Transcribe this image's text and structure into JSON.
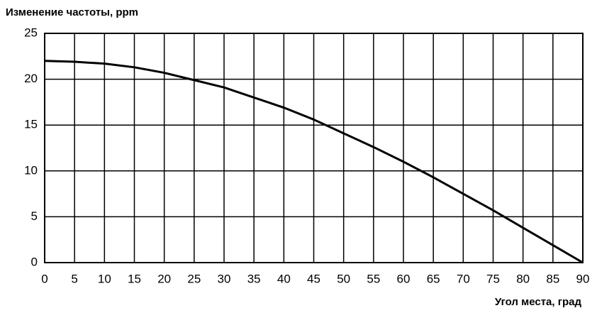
{
  "chart_data": {
    "type": "line",
    "title": "Изменение частоты, ppm",
    "x_label": "Угол места, град",
    "x": [
      0,
      5,
      10,
      15,
      20,
      25,
      30,
      35,
      40,
      45,
      50,
      55,
      60,
      65,
      70,
      75,
      80,
      85,
      90
    ],
    "values": [
      22.0,
      21.9,
      21.7,
      21.3,
      20.7,
      19.9,
      19.1,
      18.0,
      16.9,
      15.6,
      14.1,
      12.6,
      11.0,
      9.3,
      7.5,
      5.7,
      3.8,
      1.9,
      0
    ],
    "color": "#000000",
    "xlim": [
      0,
      90
    ],
    "xticks": [
      0,
      5,
      10,
      15,
      20,
      25,
      30,
      35,
      40,
      45,
      50,
      55,
      60,
      65,
      70,
      75,
      80,
      85,
      90
    ],
    "ylim": [
      0,
      25
    ],
    "yticks": [
      0,
      5,
      10,
      15,
      20,
      25
    ],
    "grid": true
  }
}
